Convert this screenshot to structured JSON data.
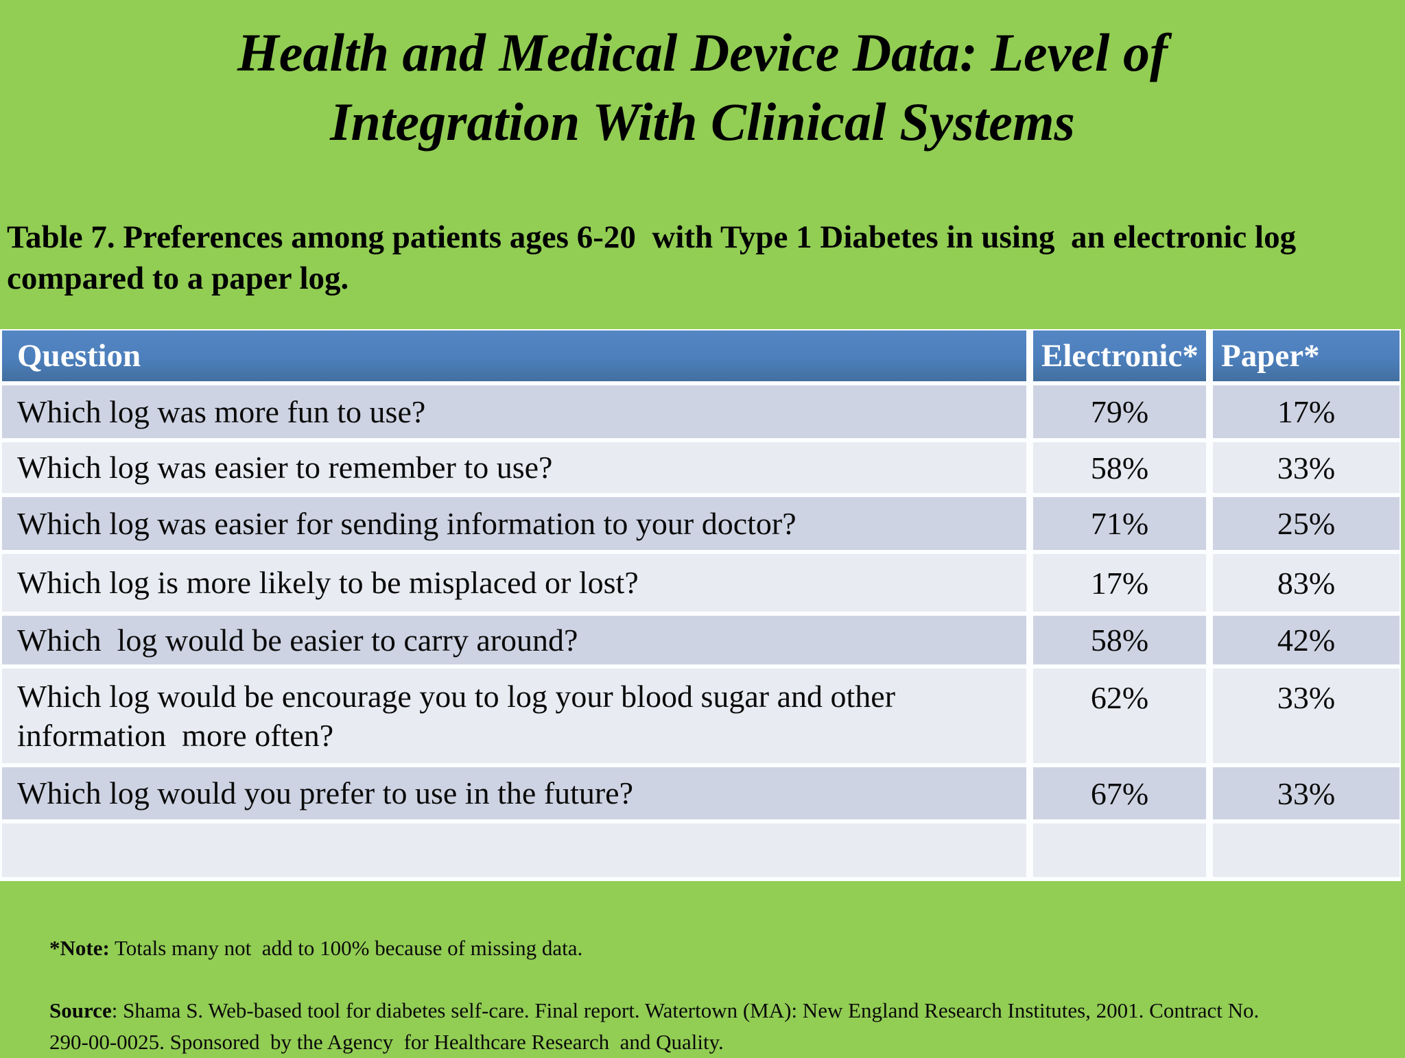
{
  "slide": {
    "title": {
      "line1": "Health and Medical Device Data: Level of",
      "line2": "Integration With Clinical Systems"
    },
    "subtitle": "Table 7. Preferences among patients ages 6-20  with Type 1 Diabetes in using  an electronic log compared to a paper log."
  },
  "table": {
    "headers": {
      "question": "Question",
      "electronic": "Electronic*",
      "paper": "Paper*"
    },
    "rows": [
      {
        "question": "Which log was more fun to use?",
        "electronic": "79%",
        "paper": "17%"
      },
      {
        "question": "Which log was easier to remember to use?",
        "electronic": "58%",
        "paper": "33%"
      },
      {
        "question": "Which log was easier for sending information to your doctor?",
        "electronic": "71%",
        "paper": "25%"
      },
      {
        "question": "Which log is more likely to be misplaced or lost?",
        "electronic": "17%",
        "paper": "83%"
      },
      {
        "question": "Which  log would be easier to carry around?",
        "electronic": "58%",
        "paper": "42%"
      },
      {
        "question": "Which log would be encourage you to log your blood sugar and other information  more often?",
        "electronic": "62%",
        "paper": "33%"
      },
      {
        "question": "Which log would you prefer to use in the future?",
        "electronic": "67%",
        "paper": "33%"
      },
      {
        "question": "",
        "electronic": "",
        "paper": ""
      }
    ]
  },
  "footnotes": {
    "note_label": "*Note:",
    "note_text": " Totals many not  add to 100% because of missing data.",
    "source_label": "Source",
    "source_text": ": Shama S. Web-based tool for diabetes self-care. Final report. Watertown (MA): New England Research Institutes, 2001. Contract No. 290-00-0025. Sponsored  by the Agency  for Healthcare Research  and Quality."
  },
  "colors": {
    "background_green": "#92cd54",
    "header_blue": "#4c7fbc",
    "row_dark": "#cdd3e2",
    "row_light": "#e9ebf2",
    "separator_white": "#fcfdfe",
    "header_text": "#ffffff",
    "body_text": "#0a0a0a"
  },
  "chart_data": {
    "type": "table",
    "title": "Table 7. Preferences among patients ages 6-20 with Type 1 Diabetes in using an electronic log compared to a paper log.",
    "columns": [
      "Question",
      "Electronic*",
      "Paper*"
    ],
    "categories": [
      "Which log was more fun to use?",
      "Which log was easier to remember to use?",
      "Which log was easier for sending information to your doctor?",
      "Which log is more likely to be misplaced or lost?",
      "Which log would be easier to carry around?",
      "Which log would be encourage you to log your blood sugar and other information more often?",
      "Which log would you prefer to use in the future?"
    ],
    "series": [
      {
        "name": "Electronic",
        "values": [
          79,
          58,
          71,
          17,
          58,
          62,
          67
        ]
      },
      {
        "name": "Paper",
        "values": [
          17,
          33,
          25,
          83,
          42,
          33,
          33
        ]
      }
    ],
    "units": "percent"
  }
}
